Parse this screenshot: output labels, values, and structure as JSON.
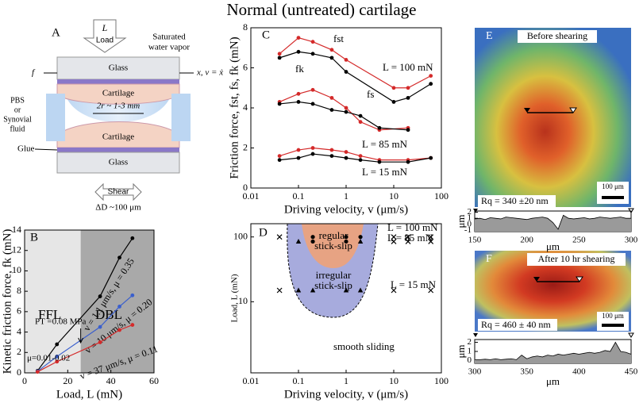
{
  "title": "Normal (untreated) cartilage",
  "panel_a": {
    "label": "A",
    "load_symbol": "L",
    "load": "Load",
    "vapor": [
      "Saturated",
      "water vapor"
    ],
    "motion": "x, v = ẋ",
    "force": "f",
    "glass_top": "Glass",
    "cartilage_top": "Cartilage",
    "contact": "2r ~ 1-3 mm",
    "fluid": [
      "PBS",
      "or",
      "Synovial",
      "fluid"
    ],
    "cartilage_bottom": "Cartilage",
    "glue": "Glue",
    "glass_bottom": "Glass",
    "shear": "Shear",
    "displacement": "ΔD ~100 μm"
  },
  "panel_e": {
    "label": "E",
    "caption": "Before shearing",
    "roughness": "Rq = 340 ±20 nm",
    "scale_bar": "100 μm"
  },
  "panel_f": {
    "label": "F",
    "caption": "After 10 hr shearing",
    "roughness": "Rq = 460 ± 40 nm",
    "scale_bar": "100 μm"
  },
  "chart_data": [
    {
      "type": "line",
      "x_label": "Load, L (mN)",
      "y_label": "Kinetic friction force, fk (mN)",
      "xlim": [
        0,
        60
      ],
      "xticks": [
        0,
        20,
        40,
        60
      ],
      "ylim": [
        0,
        14
      ],
      "yticks": [
        0,
        2,
        4,
        6,
        8,
        10,
        12,
        14
      ],
      "regions": [
        {
          "label": "FFL",
          "from": 0,
          "to": 26,
          "color": "#e6e6e6"
        },
        {
          "label": "DBL",
          "from": 26,
          "to": 60,
          "color": "#a9a9a9"
        }
      ],
      "annotations": [
        "B",
        "PT =0.08 MPa",
        "μ=0.01-0.02"
      ],
      "series": [
        {
          "name": "v = 1.1 μm/s, μ = 0.35",
          "color": "#000000",
          "x": [
            6,
            15,
            35,
            44,
            50
          ],
          "values": [
            0.2,
            2.8,
            7.5,
            11.3,
            13.2
          ]
        },
        {
          "name": "v = 10 μm/s, μ = 0.20",
          "color": "#3a5fcd",
          "x": [
            6,
            15,
            35,
            44,
            50
          ],
          "values": [
            0.15,
            1.6,
            4.5,
            6.5,
            7.6
          ]
        },
        {
          "name": "v = 37 μm/s, μ = 0.11",
          "color": "#d42a2a",
          "x": [
            6,
            15,
            35,
            44,
            50
          ],
          "values": [
            0.1,
            1.1,
            3.0,
            4.2,
            4.7
          ]
        }
      ]
    },
    {
      "type": "line",
      "x_label": "Driving velocity, v (μm/s)",
      "y_label": "Friction force, fst, fs, fk (mN)",
      "xlog": true,
      "xlim": [
        0.01,
        100
      ],
      "xticks": [
        0.01,
        0.1,
        1,
        10,
        100
      ],
      "ylim": [
        0,
        8
      ],
      "yticks": [
        0,
        2,
        4,
        6,
        8
      ],
      "annotations": [
        "C",
        "fst",
        "fk",
        "fs",
        "L = 100 mN",
        "L = 85 mN",
        "L = 15 mN"
      ],
      "series": [
        {
          "color": "#d42a2a",
          "x": [
            0.04,
            0.1,
            0.2,
            0.5,
            1,
            10,
            20,
            60
          ],
          "values": [
            6.7,
            7.5,
            7.3,
            6.9,
            6.4,
            5.0,
            5.0,
            5.6
          ]
        },
        {
          "color": "#000000",
          "x": [
            0.04,
            0.1,
            0.2,
            0.5,
            1,
            10,
            20,
            60
          ],
          "values": [
            6.5,
            6.8,
            6.7,
            6.5,
            5.8,
            4.3,
            4.5,
            5.2
          ]
        },
        {
          "color": "#d42a2a",
          "x": [
            0.04,
            0.1,
            0.2,
            0.5,
            1,
            2,
            5,
            20
          ],
          "values": [
            4.3,
            4.7,
            4.9,
            4.5,
            4.0,
            3.3,
            2.9,
            3.0
          ]
        },
        {
          "color": "#000000",
          "x": [
            0.04,
            0.1,
            0.2,
            0.5,
            1,
            2,
            5,
            20
          ],
          "values": [
            4.2,
            4.3,
            4.2,
            3.9,
            3.8,
            3.6,
            3.0,
            2.9
          ]
        },
        {
          "color": "#d42a2a",
          "x": [
            0.04,
            0.1,
            0.2,
            0.5,
            1,
            2,
            5,
            20,
            60
          ],
          "values": [
            1.6,
            1.9,
            2.0,
            1.9,
            1.8,
            1.6,
            1.4,
            1.4,
            1.5
          ]
        },
        {
          "color": "#000000",
          "x": [
            0.04,
            0.1,
            0.2,
            0.5,
            1,
            2,
            5,
            20,
            60
          ],
          "values": [
            1.4,
            1.5,
            1.7,
            1.6,
            1.5,
            1.4,
            1.3,
            1.3,
            1.5
          ]
        }
      ]
    },
    {
      "type": "scatter",
      "x_label": "Driving velocity, v (μm/s)",
      "y_label": "Load, L (mN)",
      "xlog": true,
      "ylog": true,
      "xlim": [
        0.01,
        100
      ],
      "xticks": [
        0.01,
        0.1,
        1,
        10,
        100
      ],
      "ylim": [
        0.8,
        160
      ],
      "yticks": [
        10,
        100
      ],
      "annotations": [
        "D",
        [
          "regular",
          "stick-slip"
        ],
        [
          "irregular",
          "stick-slip"
        ],
        "smooth sliding",
        "L = 100 mN",
        "L = 85 mN",
        "L = 15 mN"
      ],
      "series": [
        {
          "marker": "cross",
          "color": "#000000",
          "x": [
            0.04,
            10,
            20,
            60,
            10,
            20,
            60,
            0.04,
            10,
            60
          ],
          "values": [
            100,
            100,
            100,
            100,
            85,
            85,
            85,
            15,
            15,
            15
          ]
        },
        {
          "marker": "circle",
          "color": "#000000",
          "x": [
            0.2,
            0.2,
            1,
            1,
            2
          ],
          "values": [
            100,
            85,
            100,
            85,
            100
          ]
        },
        {
          "marker": "triangle",
          "color": "#000000",
          "x": [
            0.1,
            2,
            0.1,
            0.2,
            1,
            2
          ],
          "values": [
            85,
            85,
            15,
            15,
            15,
            15
          ]
        }
      ]
    },
    {
      "type": "area",
      "x_label": "μm",
      "y_label": "μm",
      "xlim": [
        150,
        300
      ],
      "xticks": [
        150,
        200,
        250,
        300
      ],
      "ylim": [
        -1.2,
        2.2
      ],
      "yticks": [
        -1,
        0,
        1,
        2
      ],
      "series": [
        {
          "color": "#9a9a9a",
          "x": [
            150,
            155,
            160,
            165,
            170,
            175,
            180,
            185,
            190,
            195,
            200,
            205,
            210,
            215,
            220,
            225,
            230,
            235,
            240,
            245,
            250,
            255,
            260,
            265,
            270,
            275,
            280,
            285,
            290,
            295,
            300
          ],
          "values": [
            0.9,
            1.0,
            0.8,
            1.1,
            1.0,
            0.9,
            1.2,
            1.1,
            1.0,
            0.9,
            0.8,
            1.0,
            1.1,
            1.2,
            1.0,
            0.3,
            -0.8,
            1.5,
            1.0,
            0.9,
            1.0,
            1.1,
            0.9,
            1.0,
            1.2,
            1.1,
            1.0,
            1.1,
            1.2,
            1.0,
            1.0
          ]
        }
      ]
    },
    {
      "type": "area",
      "x_label": "μm",
      "y_label": "μm",
      "xlim": [
        300,
        450
      ],
      "xticks": [
        300,
        350,
        400,
        450
      ],
      "ylim": [
        -0.3,
        2.3
      ],
      "yticks": [
        0,
        1,
        2
      ],
      "series": [
        {
          "color": "#9a9a9a",
          "x": [
            300,
            305,
            310,
            315,
            320,
            325,
            330,
            335,
            340,
            345,
            350,
            355,
            360,
            365,
            370,
            375,
            380,
            385,
            390,
            395,
            400,
            405,
            410,
            415,
            420,
            425,
            430,
            435,
            440,
            445,
            450
          ],
          "values": [
            0.1,
            0.1,
            0.15,
            0.1,
            0.2,
            0.1,
            0.15,
            0.2,
            0.1,
            0.6,
            0.2,
            0.4,
            0.5,
            0.4,
            0.6,
            0.5,
            0.7,
            0.6,
            0.7,
            0.8,
            0.7,
            0.8,
            0.9,
            0.8,
            0.9,
            1.1,
            1.0,
            2.0,
            1.0,
            0.9,
            0.7
          ]
        }
      ]
    }
  ]
}
